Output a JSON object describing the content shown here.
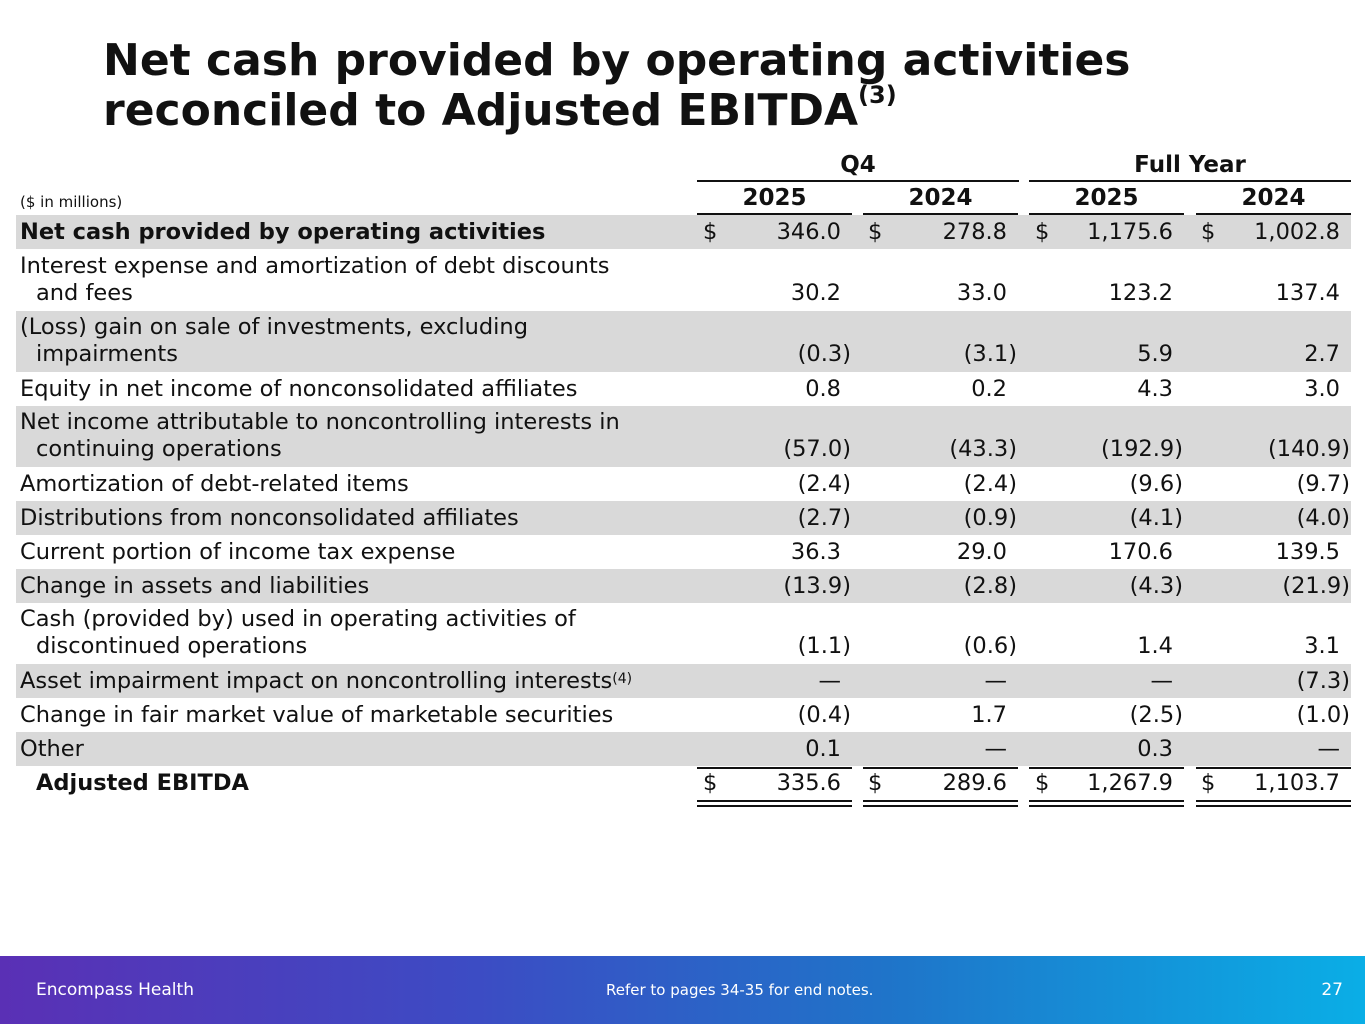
{
  "title": {
    "text": "Net cash provided by operating activities reconciled to Adjusted EBITDA",
    "superscript": "(3)"
  },
  "table": {
    "units": "($ in millions)",
    "groups": [
      "Q4",
      "Full Year"
    ],
    "years": [
      "2025",
      "2024",
      "2025",
      "2024"
    ],
    "currency_symbol": "$",
    "rows": [
      {
        "label": "Net cash provided by operating activities",
        "values": [
          "346.0",
          "278.8",
          "1,175.6",
          "1,002.8"
        ]
      },
      {
        "label": "Interest expense and amortization of debt discounts",
        "label_cont": "and fees",
        "values": [
          "30.2",
          "33.0",
          "123.2",
          "137.4"
        ]
      },
      {
        "label": "(Loss) gain on sale of investments, excluding",
        "label_cont": "impairments",
        "values": [
          "(0.3)",
          "(3.1)",
          "5.9",
          "2.7"
        ]
      },
      {
        "label": "Equity in net income of nonconsolidated affiliates",
        "values": [
          "0.8",
          "0.2",
          "4.3",
          "3.0"
        ]
      },
      {
        "label": "Net income attributable to noncontrolling interests in",
        "label_cont": "continuing operations",
        "values": [
          "(57.0)",
          "(43.3)",
          "(192.9)",
          "(140.9)"
        ]
      },
      {
        "label": "Amortization of debt-related items",
        "values": [
          "(2.4)",
          "(2.4)",
          "(9.6)",
          "(9.7)"
        ]
      },
      {
        "label": "Distributions from nonconsolidated affiliates",
        "values": [
          "(2.7)",
          "(0.9)",
          "(4.1)",
          "(4.0)"
        ]
      },
      {
        "label": "Current portion of income tax expense",
        "values": [
          "36.3",
          "29.0",
          "170.6",
          "139.5"
        ]
      },
      {
        "label": "Change in assets and liabilities",
        "values": [
          "(13.9)",
          "(2.8)",
          "(4.3)",
          "(21.9)"
        ]
      },
      {
        "label": "Cash (provided by) used in operating activities of",
        "label_cont": "discontinued operations",
        "values": [
          "(1.1)",
          "(0.6)",
          "1.4",
          "3.1"
        ]
      },
      {
        "label": "Asset impairment impact on noncontrolling interests",
        "label_sup": "(4)",
        "values": [
          "—",
          "—",
          "—",
          "(7.3)"
        ]
      },
      {
        "label": "Change in fair market value of marketable securities",
        "values": [
          "(0.4)",
          "1.7",
          "(2.5)",
          "(1.0)"
        ]
      },
      {
        "label": "Other",
        "values": [
          "0.1",
          "—",
          "0.3",
          "—"
        ]
      },
      {
        "label": "Adjusted EBITDA",
        "values": [
          "335.6",
          "289.6",
          "1,267.9",
          "1,103.7"
        ]
      }
    ]
  },
  "footer": {
    "brand": "Encompass Health",
    "note": "Refer to pages 34-35 for end notes.",
    "page_number": "27"
  },
  "colors": {
    "row_shade": "#d9d9d9",
    "footer_gradient_start": "#5a30b5",
    "footer_gradient_end": "#0aaee6"
  }
}
